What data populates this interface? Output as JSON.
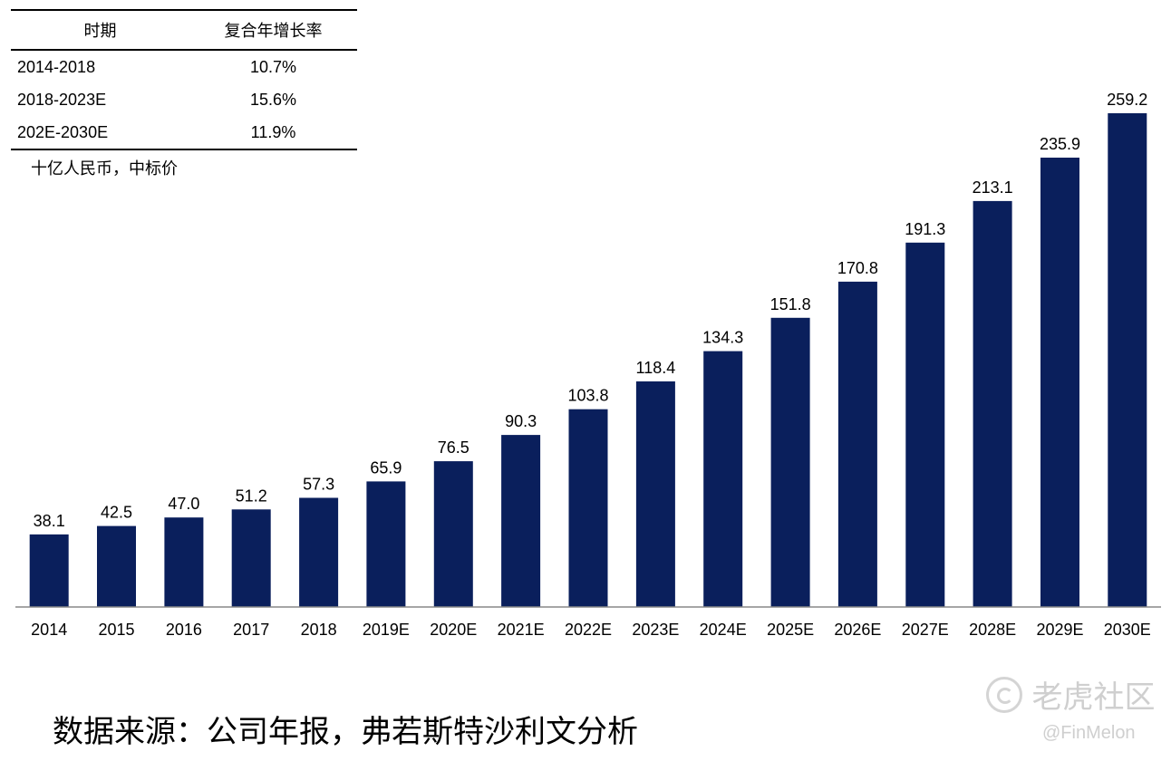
{
  "cagr_table": {
    "headers": [
      "时期",
      "复合年增长率"
    ],
    "rows": [
      [
        "2014-2018",
        "10.7%"
      ],
      [
        "2018-2023E",
        "15.6%"
      ],
      [
        "202E-2030E",
        "11.9%"
      ]
    ]
  },
  "unit_label": "十亿人民币，中标价",
  "source_note": "数据来源：公司年报，弗若斯特沙利文分析",
  "watermark": {
    "name": "老虎社区",
    "handle": "@FinMelon"
  },
  "colors": {
    "bar": "#0a1f5c",
    "axis": "#888888"
  },
  "chart_data": {
    "type": "bar",
    "categories": [
      "2014",
      "2015",
      "2016",
      "2017",
      "2018",
      "2019E",
      "2020E",
      "2021E",
      "2022E",
      "2023E",
      "2024E",
      "2025E",
      "2026E",
      "2027E",
      "2028E",
      "2029E",
      "2030E"
    ],
    "values": [
      38.1,
      42.5,
      47.0,
      51.2,
      57.3,
      65.9,
      76.5,
      90.3,
      103.8,
      118.4,
      134.3,
      151.8,
      170.8,
      191.3,
      213.1,
      235.9,
      259.2
    ],
    "value_labels": [
      "38.1",
      "42.5",
      "47.0",
      "51.2",
      "57.3",
      "65.9",
      "76.5",
      "90.3",
      "103.8",
      "118.4",
      "134.3",
      "151.8",
      "170.8",
      "191.3",
      "213.1",
      "235.9",
      "259.2"
    ],
    "ylim": [
      0,
      259.2
    ],
    "grid": false,
    "legend": "none"
  }
}
